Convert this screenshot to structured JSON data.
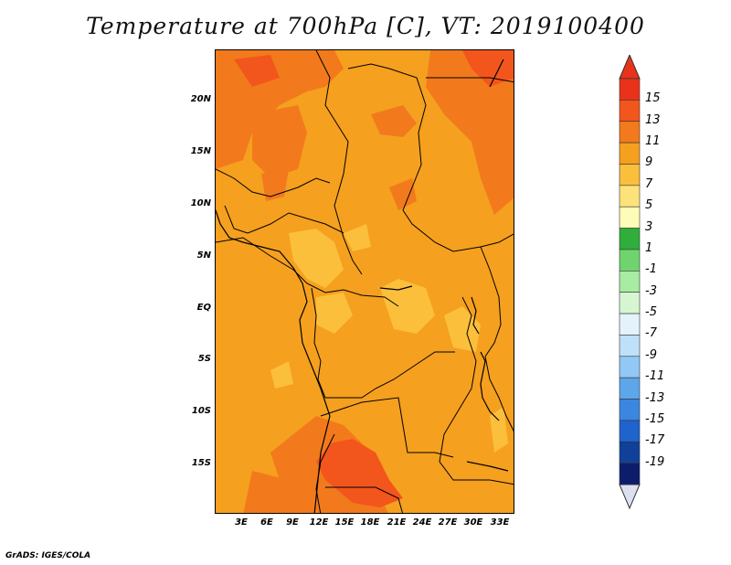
{
  "title": "Temperature at 700hPa [C], VT: 2019100400",
  "footer": "GrADS: IGES/COLA",
  "y_ticks": [
    "20N",
    "15N",
    "10N",
    "5N",
    "EQ",
    "5S",
    "10S",
    "15S"
  ],
  "x_ticks": [
    "3E",
    "6E",
    "9E",
    "12E",
    "15E",
    "18E",
    "21E",
    "24E",
    "27E",
    "30E",
    "33E"
  ],
  "colorbar": {
    "labels": [
      "15",
      "13",
      "11",
      "9",
      "7",
      "5",
      "3",
      "1",
      "-1",
      "-3",
      "-5",
      "-7",
      "-9",
      "-11",
      "-13",
      "-15",
      "-17",
      "-19"
    ],
    "colors": [
      "#e8331a",
      "#f2561c",
      "#f27a1c",
      "#f5a01e",
      "#fbbf3c",
      "#fde27a",
      "#fdfcb8",
      "#2fae3c",
      "#6fd46e",
      "#a8eba2",
      "#d6f6d2",
      "#e4f2fb",
      "#bfe0f9",
      "#92c8f5",
      "#5ea6ea",
      "#3b86df",
      "#1f63cc",
      "#10409a",
      "#0d1d6b"
    ],
    "over_color": "#e8331a",
    "under_color": "#dde0f0"
  },
  "colors": {
    "base": "#f5a01e",
    "warm": "#f27a1c",
    "hot": "#f2561c",
    "cool": "#fbbf3c"
  }
}
